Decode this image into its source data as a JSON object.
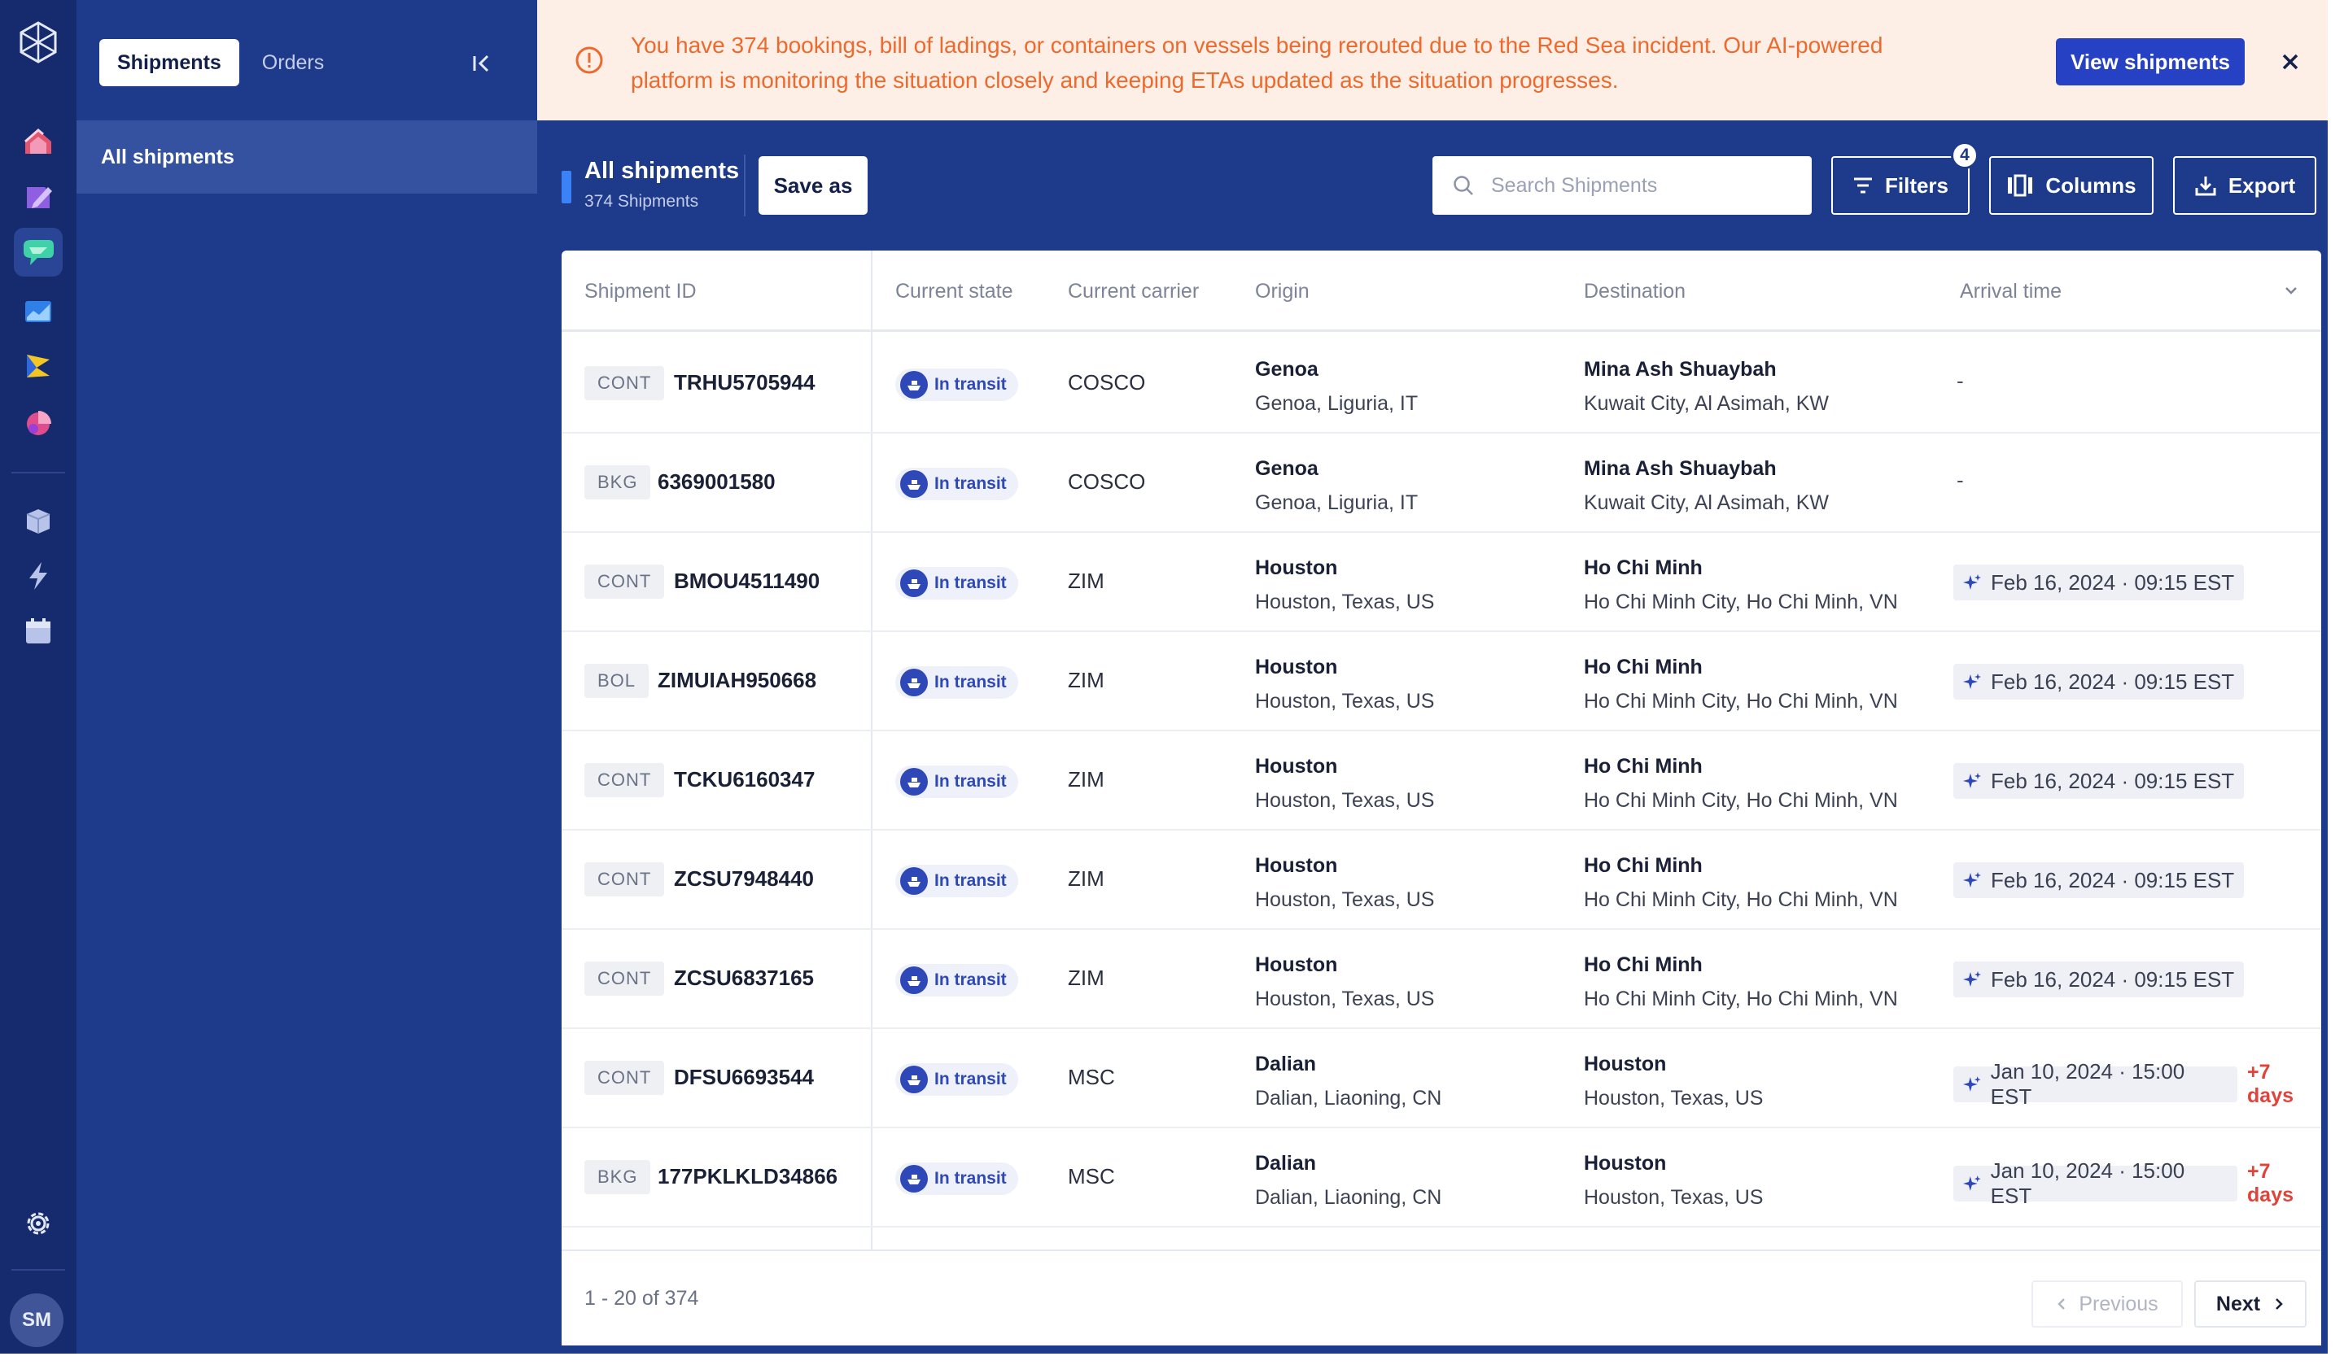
{
  "colors": {
    "rail": "#162a6e",
    "nav": "#1e3a8a",
    "banner_bg": "#fdeee6",
    "banner_text": "#ec6a2d",
    "primary_button": "#2741c4",
    "state_chip": "#2e48b8",
    "delay": "#e0433a"
  },
  "rail": {
    "logo_icon": "hexagon-logo-icon",
    "items": [
      "house-icon",
      "pencil-icon",
      "chat-bubble-icon",
      "chart-icon",
      "flag-icon",
      "pie-icon",
      "box-icon",
      "bolt-icon",
      "calendar-icon"
    ],
    "settings_icon": "gear-icon",
    "avatar": "SM"
  },
  "subnav": {
    "tabs": [
      {
        "label": "Shipments",
        "active": true
      },
      {
        "label": "Orders",
        "active": false
      }
    ],
    "collapse_icon": "collapse-left-icon",
    "items": [
      {
        "label": "All shipments",
        "active": true
      }
    ]
  },
  "banner": {
    "icon": "info-circle-icon",
    "message": "You have 374 bookings, bill of ladings, or containers on vessels being rerouted due to the Red Sea incident. Our AI-powered platform is monitoring the situation closely and keeping ETAs updated as the situation progresses.",
    "button_label": "View shipments",
    "close_icon": "close-icon"
  },
  "toolbar": {
    "title": "All shipments",
    "count": "374 Shipments",
    "save_label": "Save as",
    "search_placeholder": "Search Shipments",
    "filters_label": "Filters",
    "filters_badge": "4",
    "columns_label": "Columns",
    "export_label": "Export"
  },
  "table": {
    "columns": [
      "Shipment ID",
      "Current state",
      "Current carrier",
      "Origin",
      "Destination",
      "Arrival time"
    ],
    "rows": [
      {
        "type": "CONT",
        "id": "TRHU5705944",
        "state": "In transit",
        "carrier": "COSCO",
        "origin_city": "Genoa",
        "origin_region": "Genoa, Liguria, IT",
        "dest_city": "Mina Ash Shuaybah",
        "dest_region": "Kuwait City, Al Asimah, KW",
        "arrival": "-",
        "delay": ""
      },
      {
        "type": "BKG",
        "id": "6369001580",
        "state": "In transit",
        "carrier": "COSCO",
        "origin_city": "Genoa",
        "origin_region": "Genoa, Liguria, IT",
        "dest_city": "Mina Ash Shuaybah",
        "dest_region": "Kuwait City, Al Asimah, KW",
        "arrival": "-",
        "delay": ""
      },
      {
        "type": "CONT",
        "id": "BMOU4511490",
        "state": "In transit",
        "carrier": "ZIM",
        "origin_city": "Houston",
        "origin_region": "Houston, Texas, US",
        "dest_city": "Ho Chi Minh",
        "dest_region": "Ho Chi Minh City, Ho Chi Minh, VN",
        "arrival": "Feb 16, 2024 · 09:15 EST",
        "delay": ""
      },
      {
        "type": "BOL",
        "id": "ZIMUIAH950668",
        "state": "In transit",
        "carrier": "ZIM",
        "origin_city": "Houston",
        "origin_region": "Houston, Texas, US",
        "dest_city": "Ho Chi Minh",
        "dest_region": "Ho Chi Minh City, Ho Chi Minh, VN",
        "arrival": "Feb 16, 2024 · 09:15 EST",
        "delay": ""
      },
      {
        "type": "CONT",
        "id": "TCKU6160347",
        "state": "In transit",
        "carrier": "ZIM",
        "origin_city": "Houston",
        "origin_region": "Houston, Texas, US",
        "dest_city": "Ho Chi Minh",
        "dest_region": "Ho Chi Minh City, Ho Chi Minh, VN",
        "arrival": "Feb 16, 2024 · 09:15 EST",
        "delay": ""
      },
      {
        "type": "CONT",
        "id": "ZCSU7948440",
        "state": "In transit",
        "carrier": "ZIM",
        "origin_city": "Houston",
        "origin_region": "Houston, Texas, US",
        "dest_city": "Ho Chi Minh",
        "dest_region": "Ho Chi Minh City, Ho Chi Minh, VN",
        "arrival": "Feb 16, 2024 · 09:15 EST",
        "delay": ""
      },
      {
        "type": "CONT",
        "id": "ZCSU6837165",
        "state": "In transit",
        "carrier": "ZIM",
        "origin_city": "Houston",
        "origin_region": "Houston, Texas, US",
        "dest_city": "Ho Chi Minh",
        "dest_region": "Ho Chi Minh City, Ho Chi Minh, VN",
        "arrival": "Feb 16, 2024 · 09:15 EST",
        "delay": ""
      },
      {
        "type": "CONT",
        "id": "DFSU6693544",
        "state": "In transit",
        "carrier": "MSC",
        "origin_city": "Dalian",
        "origin_region": "Dalian, Liaoning, CN",
        "dest_city": "Houston",
        "dest_region": "Houston, Texas, US",
        "arrival": "Jan 10, 2024 · 15:00 EST",
        "delay": "+7 days"
      },
      {
        "type": "BKG",
        "id": "177PKLKLD34866",
        "state": "In transit",
        "carrier": "MSC",
        "origin_city": "Dalian",
        "origin_region": "Dalian, Liaoning, CN",
        "dest_city": "Houston",
        "dest_region": "Houston, Texas, US",
        "arrival": "Jan 10, 2024 · 15:00 EST",
        "delay": "+7 days"
      }
    ]
  },
  "pagination": {
    "range": "1 - 20 of 374",
    "previous_label": "Previous",
    "next_label": "Next"
  }
}
